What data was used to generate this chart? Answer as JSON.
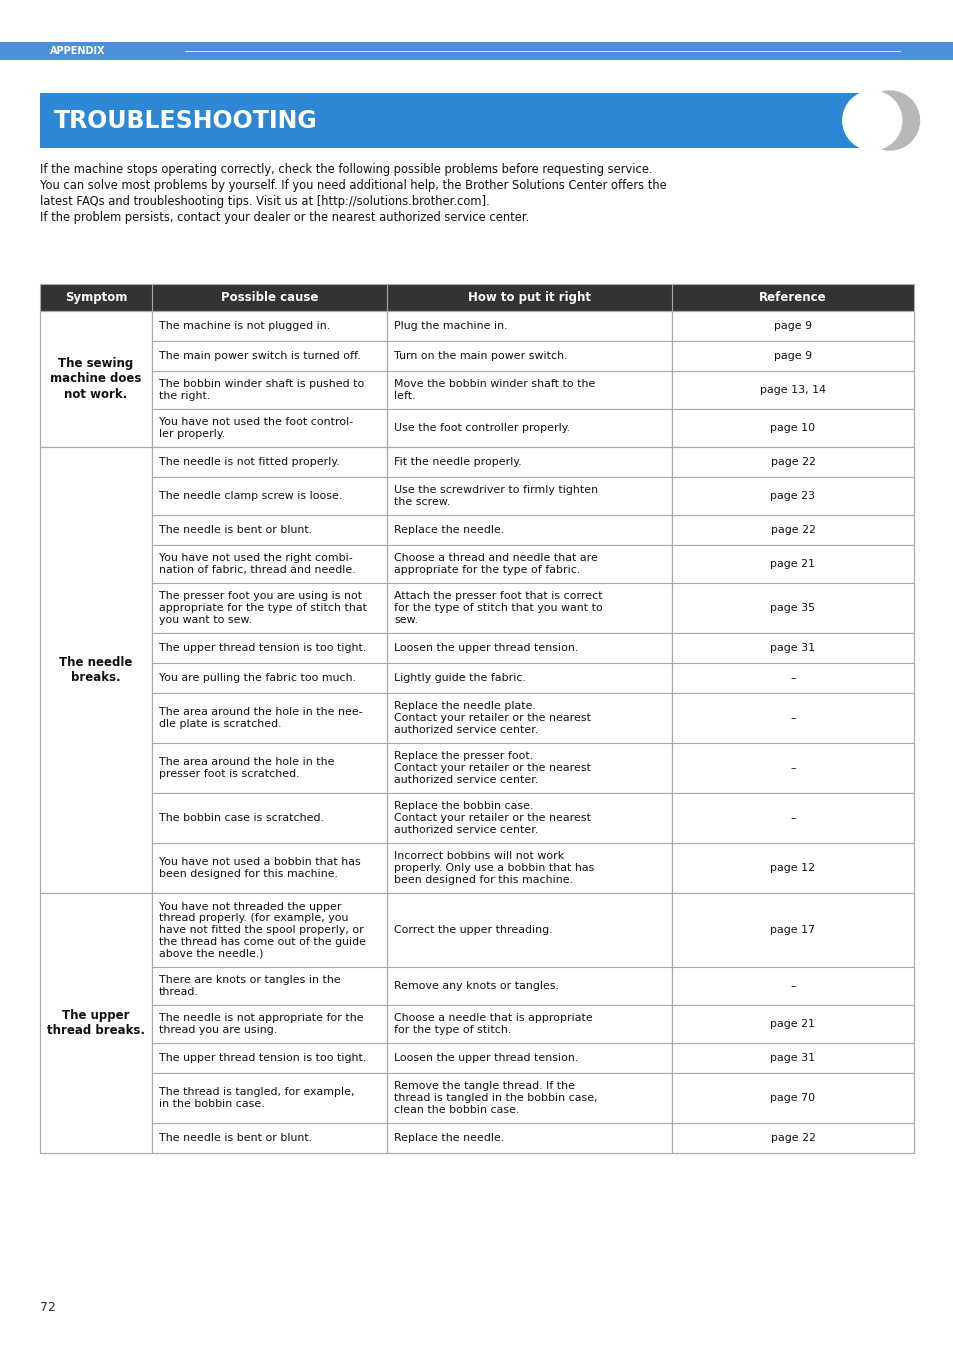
{
  "page_bg": "#ffffff",
  "header_bar_color": "#4a90d9",
  "header_bar_text": "APPENDIX",
  "title_bg": "#2d87d4",
  "title_text": "TROUBLESHOOTING",
  "title_text_color": "#ffffff",
  "intro_lines": [
    "If the machine stops operating correctly, check the following possible problems before requesting service.",
    "You can solve most problems by yourself. If you need additional help, the Brother Solutions Center offers the",
    "latest FAQs and troubleshooting tips. Visit us at [http://solutions.brother.com].",
    "If the problem persists, contact your dealer or the nearest authorized service center."
  ],
  "table_header_bg": "#333333",
  "table_header_text_color": "#ffffff",
  "table_border_color": "#aaaaaa",
  "col_headers": [
    "Symptom",
    "Possible cause",
    "How to put it right",
    "Reference"
  ],
  "rows": [
    {
      "symptom": "The sewing\nmachine does\nnot work.",
      "causes": [
        "The machine is not plugged in.",
        "The main power switch is turned off.",
        "The bobbin winder shaft is pushed to\nthe right.",
        "You have not used the foot control-\nler properly."
      ],
      "fixes": [
        "Plug the machine in.",
        "Turn on the main power switch.",
        "Move the bobbin winder shaft to the\nleft.",
        "Use the foot controller properly."
      ],
      "refs": [
        "page 9",
        "page 9",
        "page 13, 14",
        "page 10"
      ]
    },
    {
      "symptom": "The needle\nbreaks.",
      "causes": [
        "The needle is not fitted properly.",
        "The needle clamp screw is loose.",
        "The needle is bent or blunt.",
        "You have not used the right combi-\nnation of fabric, thread and needle.",
        "The presser foot you are using is not\nappropriate for the type of stitch that\nyou want to sew.",
        "The upper thread tension is too tight.",
        "You are pulling the fabric too much.",
        "The area around the hole in the nee-\ndle plate is scratched.",
        "The area around the hole in the\npresser foot is scratched.",
        "The bobbin case is scratched.",
        "You have not used a bobbin that has\nbeen designed for this machine."
      ],
      "fixes": [
        "Fit the needle properly.",
        "Use the screwdriver to firmly tighten\nthe screw.",
        "Replace the needle.",
        "Choose a thread and needle that are\nappropriate for the type of fabric.",
        "Attach the presser foot that is correct\nfor the type of stitch that you want to\nsew.",
        "Loosen the upper thread tension.",
        "Lightly guide the fabric.",
        "Replace the needle plate.\nContact your retailer or the nearest\nauthorized service center.",
        "Replace the presser foot.\nContact your retailer or the nearest\nauthorized service center.",
        "Replace the bobbin case.\nContact your retailer or the nearest\nauthorized service center.",
        "Incorrect bobbins will not work\nproperly. Only use a bobbin that has\nbeen designed for this machine."
      ],
      "refs": [
        "page 22",
        "page 23",
        "page 22",
        "page 21",
        "page 35",
        "page 31",
        "–",
        "–",
        "–",
        "–",
        "page 12"
      ]
    },
    {
      "symptom": "The upper\nthread breaks.",
      "causes": [
        "You have not threaded the upper\nthread properly. (for example, you\nhave not fitted the spool properly, or\nthe thread has come out of the guide\nabove the needle.)",
        "There are knots or tangles in the\nthread.",
        "The needle is not appropriate for the\nthread you are using.",
        "The upper thread tension is too tight.",
        "The thread is tangled, for example,\nin the bobbin case.",
        "The needle is bent or blunt."
      ],
      "fixes": [
        "Correct the upper threading.",
        "Remove any knots or tangles.",
        "Choose a needle that is appropriate\nfor the type of stitch.",
        "Loosen the upper thread tension.",
        "Remove the tangle thread. If the\nthread is tangled in the bobbin case,\nclean the bobbin case.",
        "Replace the needle."
      ],
      "refs": [
        "page 17",
        "–",
        "page 21",
        "page 31",
        "page 70",
        "page 22"
      ]
    }
  ],
  "footer_text": "72"
}
